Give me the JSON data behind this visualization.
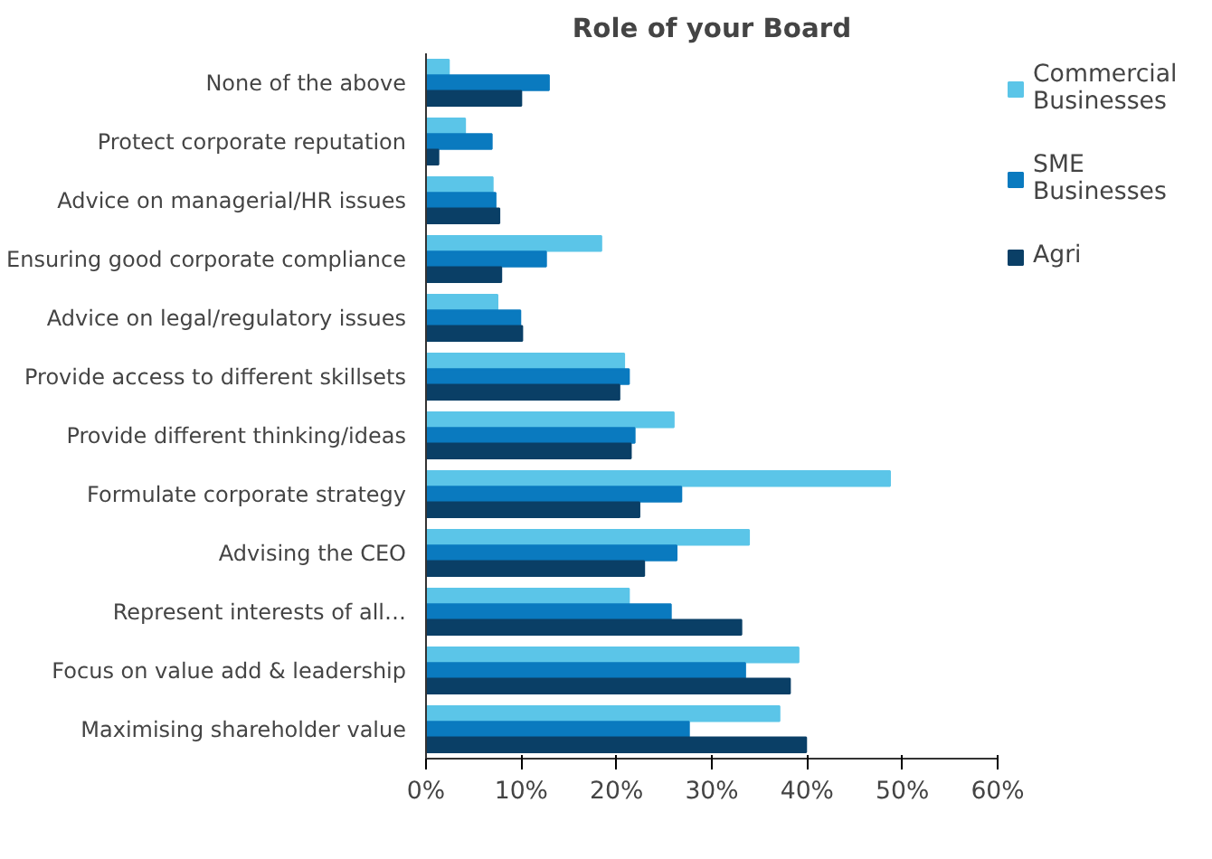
{
  "chart_data": {
    "type": "bar",
    "orientation": "horizontal",
    "title": "Role of your Board",
    "categories": [
      "None of the above",
      "Protect corporate reputation",
      "Advice on managerial/HR issues",
      "Ensuring good corporate compliance",
      "Advice on legal/regulatory issues",
      "Provide access to different skillsets",
      "Provide different thinking/ideas",
      "Formulate corporate strategy",
      "Advising the CEO",
      "Represent interests of all…",
      "Focus on value add & leadership",
      "Maximising shareholder value"
    ],
    "series": [
      {
        "name": "Commercial Businesses",
        "color": "#5bc5e8",
        "values": [
          2.4,
          4.1,
          7.0,
          18.4,
          7.5,
          20.8,
          26.0,
          48.7,
          33.9,
          21.3,
          39.1,
          37.1
        ]
      },
      {
        "name": "SME Businesses",
        "color": "#0a7abf",
        "values": [
          12.9,
          6.9,
          7.3,
          12.6,
          9.9,
          21.3,
          21.9,
          26.8,
          26.3,
          25.7,
          33.5,
          27.6
        ]
      },
      {
        "name": "Agri",
        "color": "#0a3f66",
        "values": [
          10.0,
          1.3,
          7.7,
          7.9,
          10.1,
          20.3,
          21.5,
          22.4,
          22.9,
          33.1,
          38.2,
          39.9
        ]
      }
    ],
    "xlim": [
      0,
      60
    ],
    "xticks": [
      {
        "value": 0,
        "label": "0%"
      },
      {
        "value": 10,
        "label": "10%"
      },
      {
        "value": 20,
        "label": "20%"
      },
      {
        "value": 30,
        "label": "30%"
      },
      {
        "value": 40,
        "label": "40%"
      },
      {
        "value": 50,
        "label": "50%"
      },
      {
        "value": 60,
        "label": "60%"
      }
    ],
    "grid": false,
    "legend": "right"
  }
}
